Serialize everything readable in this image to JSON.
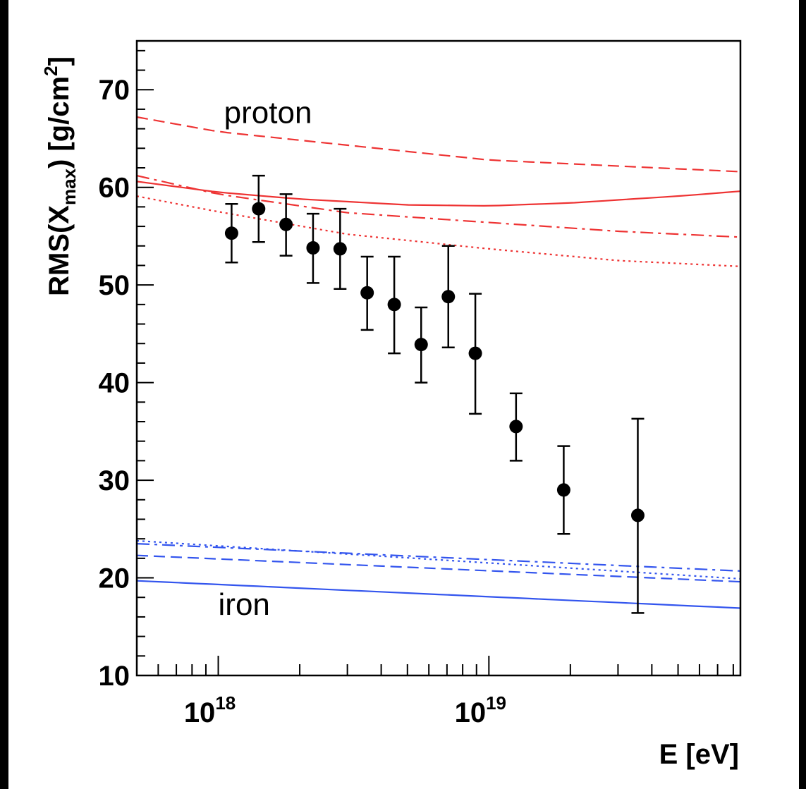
{
  "chart_data": {
    "type": "scatter",
    "xlabel": "E [eV]",
    "ylabel": "RMS(X_max) [g/cm²]",
    "ylabel_parts": {
      "pre": "RMS(X",
      "sub": "max",
      "post": ") [g/cm",
      "sup": "2",
      "end": "]"
    },
    "x_scale": "log",
    "xlim": [
      5e+17,
      8.5e+19
    ],
    "ylim": [
      10,
      75
    ],
    "x_tick_labels": [
      {
        "x": 1e+18,
        "base": "10",
        "exp": "18"
      },
      {
        "x": 1e+19,
        "base": "10",
        "exp": "19"
      }
    ],
    "y_ticks": [
      10,
      20,
      30,
      40,
      50,
      60,
      70
    ],
    "y_tick_labels": [
      "10",
      "20",
      "30",
      "40",
      "50",
      "60",
      "70"
    ],
    "annotations": [
      {
        "text": "proton",
        "x": 1.05e+18,
        "y": 66.6
      },
      {
        "text": "iron",
        "x": 1e+18,
        "y": 16.2
      }
    ],
    "data_series": {
      "x": [
        1.12e+18,
        1.41e+18,
        1.78e+18,
        2.24e+18,
        2.82e+18,
        3.55e+18,
        4.47e+18,
        5.62e+18,
        7.08e+18,
        8.91e+18,
        1.26e+19,
        1.89e+19,
        3.55e+19
      ],
      "y": [
        55.3,
        57.8,
        56.2,
        53.8,
        53.7,
        49.2,
        48.0,
        43.9,
        48.8,
        43.0,
        35.5,
        29.0,
        26.4
      ],
      "err_up": [
        3.0,
        3.4,
        3.1,
        3.5,
        4.1,
        3.7,
        4.9,
        3.8,
        5.2,
        6.1,
        3.4,
        4.5,
        9.9
      ],
      "err_down": [
        3.0,
        3.4,
        3.2,
        3.6,
        4.1,
        3.8,
        5.0,
        3.9,
        5.2,
        6.2,
        3.5,
        4.5,
        10.0
      ],
      "color": "#000000"
    },
    "model_series": [
      {
        "group": "proton",
        "style": "dashed",
        "color": "#ee3333",
        "x": [
          5e+17,
          1e+18,
          1e+19,
          8.5e+19
        ],
        "y": [
          67.2,
          65.7,
          62.8,
          61.6
        ]
      },
      {
        "group": "proton",
        "style": "solid",
        "color": "#ee3333",
        "x": [
          5e+17,
          1e+18,
          2e+18,
          5e+18,
          1e+19,
          2e+19,
          5e+19,
          8.5e+19
        ],
        "y": [
          60.6,
          59.5,
          58.8,
          58.2,
          58.1,
          58.4,
          59.1,
          59.6
        ]
      },
      {
        "group": "proton",
        "style": "dashdot",
        "color": "#ee3333",
        "x": [
          5e+17,
          1e+18,
          3e+18,
          1e+19,
          3e+19,
          8.5e+19
        ],
        "y": [
          61.2,
          59.3,
          57.4,
          56.4,
          55.5,
          54.9
        ]
      },
      {
        "group": "proton",
        "style": "dotted",
        "color": "#ee3333",
        "x": [
          5e+17,
          1e+18,
          3e+18,
          1e+19,
          3e+19,
          8.5e+19
        ],
        "y": [
          59.1,
          57.5,
          55.2,
          53.7,
          52.5,
          51.9
        ]
      },
      {
        "group": "iron",
        "style": "solid",
        "color": "#3355ee",
        "x": [
          5e+17,
          8.5e+19
        ],
        "y": [
          19.7,
          16.9
        ]
      },
      {
        "group": "iron",
        "style": "dashed",
        "color": "#3355ee",
        "x": [
          5e+17,
          8.5e+19
        ],
        "y": [
          22.3,
          19.6
        ]
      },
      {
        "group": "iron",
        "style": "dashdot",
        "color": "#3355ee",
        "x": [
          5e+17,
          8.5e+19
        ],
        "y": [
          23.5,
          20.7
        ]
      },
      {
        "group": "iron",
        "style": "dotted",
        "color": "#3355ee",
        "x": [
          5e+17,
          8.5e+19
        ],
        "y": [
          23.8,
          19.9
        ]
      }
    ]
  }
}
